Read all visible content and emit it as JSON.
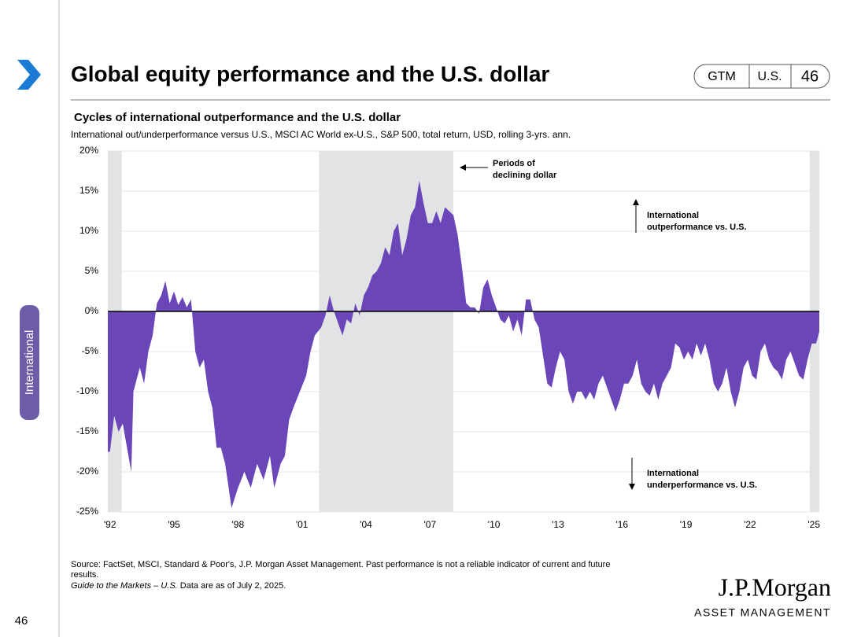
{
  "slide": {
    "title": "Global equity performance and the U.S. dollar",
    "badge": [
      "GTM",
      "U.S.",
      "46"
    ],
    "side_tab": "International",
    "page_number": "46",
    "source": "Source: FactSet, MSCI, Standard & Poor's, J.P. Morgan Asset Management. Past performance is not a reliable indicator of current and future",
    "source_cont": "results.",
    "guide": "Guide to the Markets – U.S.",
    "as_of": " Data are as of July 2, 2025.",
    "logo": "J.P.Morgan",
    "logo_sub": "ASSET MANAGEMENT"
  },
  "chart_data": {
    "type": "area",
    "title": "Cycles of international outperformance and the U.S. dollar",
    "subtitle": "International out/underperformance versus U.S., MSCI AC World ex-U.S., S&P 500, total return, USD, rolling 3-yrs. ann.",
    "color": "#6b46b9",
    "shade_color": "#e2e3e5",
    "grid": true,
    "shaded_periods": [
      [
        1991.9,
        1992.55
      ],
      [
        2001.8,
        2008.1
      ],
      [
        2024.8,
        2025.25
      ]
    ],
    "annotations": [
      {
        "lines": [
          "Periods of",
          "declining dollar"
        ]
      },
      {
        "lines": [
          "International",
          "outperformance vs. U.S."
        ]
      },
      {
        "lines": [
          "International",
          "underperformance vs. U.S."
        ]
      }
    ],
    "xlim": [
      1991.9,
      2025.25
    ],
    "xticks": [
      {
        "value": 1992,
        "label": "'92"
      },
      {
        "value": 1995,
        "label": "'95"
      },
      {
        "value": 1998,
        "label": "'98"
      },
      {
        "value": 2001,
        "label": "'01"
      },
      {
        "value": 2004,
        "label": "'04"
      },
      {
        "value": 2007,
        "label": "'07"
      },
      {
        "value": 2010,
        "label": "'10"
      },
      {
        "value": 2013,
        "label": "'13"
      },
      {
        "value": 2016,
        "label": "'16"
      },
      {
        "value": 2019,
        "label": "'19"
      },
      {
        "value": 2022,
        "label": "'22"
      },
      {
        "value": 2025,
        "label": "'25"
      }
    ],
    "ylim": [
      -25,
      20
    ],
    "yticks": [
      {
        "value": -25,
        "label": "-25%"
      },
      {
        "value": -20,
        "label": "-20%"
      },
      {
        "value": -15,
        "label": "-15%"
      },
      {
        "value": -10,
        "label": "-10%"
      },
      {
        "value": -5,
        "label": "-5%"
      },
      {
        "value": 0,
        "label": "0%"
      },
      {
        "value": 5,
        "label": "5%"
      },
      {
        "value": 10,
        "label": "10%"
      },
      {
        "value": 15,
        "label": "15%"
      },
      {
        "value": 20,
        "label": "20%"
      }
    ],
    "x": [
      1991.9,
      1992.0,
      1992.2,
      1992.4,
      1992.6,
      1992.8,
      1993.0,
      1993.1,
      1993.4,
      1993.6,
      1993.8,
      1994.0,
      1994.2,
      1994.4,
      1994.6,
      1994.8,
      1995.0,
      1995.2,
      1995.4,
      1995.6,
      1995.8,
      1996.0,
      1996.2,
      1996.4,
      1996.6,
      1996.8,
      1997.0,
      1997.2,
      1997.4,
      1997.7,
      1998.0,
      1998.3,
      1998.6,
      1998.9,
      1999.2,
      1999.5,
      1999.7,
      2000.0,
      2000.2,
      2000.4,
      2000.6,
      2000.9,
      2001.2,
      2001.4,
      2001.6,
      2001.9,
      2002.1,
      2002.3,
      2002.5,
      2002.7,
      2002.9,
      2003.1,
      2003.3,
      2003.5,
      2003.7,
      2003.9,
      2004.1,
      2004.3,
      2004.5,
      2004.7,
      2004.9,
      2005.1,
      2005.3,
      2005.5,
      2005.7,
      2005.9,
      2006.1,
      2006.3,
      2006.5,
      2006.7,
      2006.9,
      2007.1,
      2007.3,
      2007.5,
      2007.7,
      2007.9,
      2008.1,
      2008.3,
      2008.5,
      2008.7,
      2008.9,
      2009.1,
      2009.3,
      2009.5,
      2009.7,
      2009.9,
      2010.1,
      2010.3,
      2010.5,
      2010.7,
      2010.9,
      2011.1,
      2011.3,
      2011.5,
      2011.7,
      2011.9,
      2012.1,
      2012.3,
      2012.5,
      2012.7,
      2012.9,
      2013.1,
      2013.3,
      2013.5,
      2013.7,
      2013.9,
      2014.1,
      2014.3,
      2014.5,
      2014.7,
      2014.9,
      2015.1,
      2015.3,
      2015.5,
      2015.7,
      2015.9,
      2016.1,
      2016.3,
      2016.5,
      2016.7,
      2016.9,
      2017.1,
      2017.3,
      2017.5,
      2017.7,
      2017.9,
      2018.1,
      2018.3,
      2018.5,
      2018.7,
      2018.9,
      2019.1,
      2019.3,
      2019.5,
      2019.7,
      2019.9,
      2020.1,
      2020.3,
      2020.5,
      2020.7,
      2020.9,
      2021.1,
      2021.3,
      2021.5,
      2021.7,
      2021.9,
      2022.1,
      2022.3,
      2022.5,
      2022.7,
      2022.9,
      2023.1,
      2023.3,
      2023.5,
      2023.7,
      2023.9,
      2024.1,
      2024.3,
      2024.5,
      2024.7,
      2024.9,
      2025.1,
      2025.25
    ],
    "values": [
      -17.5,
      -17.5,
      -13,
      -15,
      -14,
      -17,
      -20,
      -10,
      -7,
      -9,
      -5,
      -3,
      1,
      2,
      3.8,
      1,
      2.5,
      0.8,
      1.8,
      0.5,
      1.5,
      -5,
      -7,
      -6,
      -10,
      -12,
      -17,
      -17,
      -19,
      -24.5,
      -22,
      -20,
      -22,
      -19,
      -21,
      -18,
      -22,
      -19,
      -18,
      -13.5,
      -12,
      -10,
      -8,
      -5,
      -3,
      -2,
      -0.5,
      2,
      0,
      -1.5,
      -3,
      -1,
      -1.5,
      1,
      -0.5,
      2,
      3,
      4.5,
      5,
      6,
      8,
      7,
      10,
      11,
      7,
      9,
      12,
      13,
      16.3,
      13.5,
      11,
      11,
      12.5,
      11,
      13,
      12.5,
      12,
      9.5,
      5.5,
      1,
      0.5,
      0.5,
      -0.3,
      3,
      4,
      2,
      0.5,
      -1,
      -1.5,
      -0.5,
      -2.5,
      -1,
      -3,
      1.5,
      1.5,
      -1,
      -2,
      -5.5,
      -9,
      -9.5,
      -7,
      -5,
      -6,
      -10,
      -11.5,
      -10,
      -10,
      -11,
      -10,
      -11,
      -9,
      -8,
      -9.5,
      -11,
      -12.5,
      -11,
      -9,
      -9,
      -8,
      -6,
      -9,
      -10,
      -10.5,
      -9,
      -11,
      -9,
      -8,
      -7,
      -4,
      -4.5,
      -6,
      -5,
      -6,
      -4,
      -5.5,
      -4,
      -6,
      -9,
      -10,
      -9,
      -7,
      -10,
      -12,
      -10,
      -7,
      -6,
      -8,
      -8.5,
      -5,
      -4,
      -6,
      -7,
      -7.5,
      -8.5,
      -6,
      -5,
      -6.5,
      -8,
      -8.5,
      -6,
      -4,
      -4,
      -2.5
    ]
  }
}
